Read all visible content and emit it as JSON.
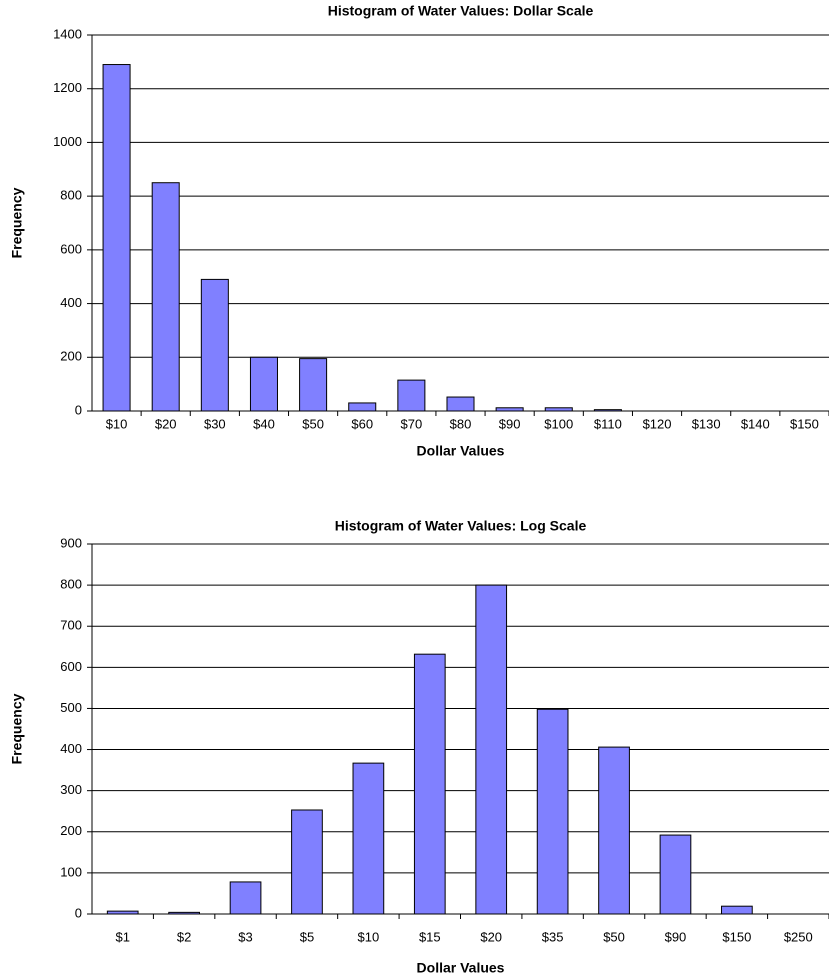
{
  "chart_data": [
    {
      "type": "bar",
      "title": "Histogram of Water Values: Dollar Scale",
      "x_label": "Dollar Values",
      "y_label": "Frequency",
      "categories": [
        "$10",
        "$20",
        "$30",
        "$40",
        "$50",
        "$60",
        "$70",
        "$80",
        "$90",
        "$100",
        "$110",
        "$120",
        "$130",
        "$140",
        "$150"
      ],
      "values": [
        1290,
        850,
        490,
        200,
        195,
        30,
        115,
        52,
        12,
        12,
        5,
        0,
        0,
        0,
        0
      ],
      "color": "#8080ff",
      "ylim": [
        0,
        1400
      ],
      "yticks": [
        0,
        200,
        400,
        600,
        800,
        1000,
        1200,
        1400
      ],
      "grid": true
    },
    {
      "type": "bar",
      "title": "Histogram of Water Values: Log Scale",
      "x_label": "Dollar Values",
      "y_label": "Frequency",
      "categories": [
        "$1",
        "$2",
        "$3",
        "$5",
        "$10",
        "$15",
        "$20",
        "$35",
        "$50",
        "$90",
        "$150",
        "$250"
      ],
      "values": [
        7,
        4,
        78,
        253,
        367,
        632,
        800,
        498,
        406,
        192,
        19,
        0
      ],
      "color": "#8080ff",
      "ylim": [
        0,
        900
      ],
      "yticks": [
        0,
        100,
        200,
        300,
        400,
        500,
        600,
        700,
        800,
        900
      ],
      "grid": true
    }
  ]
}
